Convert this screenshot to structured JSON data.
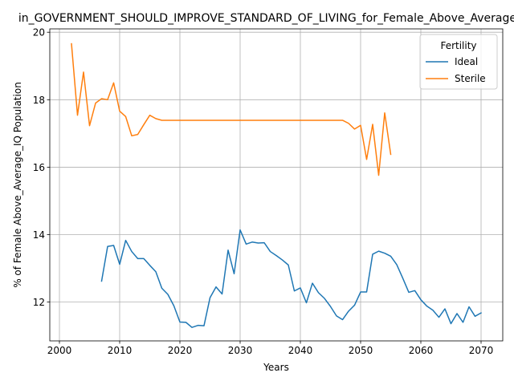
{
  "chart_data": {
    "type": "line",
    "title": "in_GOVERNMENT_SHOULD_IMPROVE_STANDARD_OF_LIVING_for_Female_Above_Average_IQ",
    "xlabel": "Years",
    "ylabel": "% of Female Above_Average_IQ Population",
    "xlim": [
      1998.4,
      2073.6
    ],
    "ylim": [
      10.85,
      20.1
    ],
    "xticks": [
      2000,
      2010,
      2020,
      2030,
      2040,
      2050,
      2060,
      2070
    ],
    "yticks": [
      12,
      14,
      16,
      18,
      20
    ],
    "grid": true,
    "legend": {
      "title": "Fertility",
      "position": "top-right"
    },
    "series": [
      {
        "name": "Ideal",
        "color": "#1f77b4",
        "x": [
          2007,
          2008,
          2009,
          2010,
          2011,
          2012,
          2013,
          2014,
          2015,
          2016,
          2017,
          2018,
          2019,
          2020,
          2021,
          2022,
          2023,
          2024,
          2025,
          2026,
          2027,
          2028,
          2029,
          2030,
          2031,
          2032,
          2033,
          2034,
          2035,
          2036,
          2037,
          2038,
          2039,
          2040,
          2041,
          2042,
          2043,
          2044,
          2045,
          2046,
          2047,
          2048,
          2049,
          2050,
          2051,
          2052,
          2053,
          2054,
          2055,
          2056,
          2057,
          2058,
          2059,
          2060,
          2061,
          2062,
          2063,
          2064,
          2065,
          2066,
          2067,
          2068,
          2069,
          2070
        ],
        "y": [
          12.62,
          13.65,
          13.68,
          13.12,
          13.83,
          13.5,
          13.29,
          13.29,
          13.09,
          12.9,
          12.41,
          12.23,
          11.89,
          11.41,
          11.4,
          11.25,
          11.31,
          11.3,
          12.13,
          12.45,
          12.24,
          13.54,
          12.84,
          14.14,
          13.72,
          13.78,
          13.75,
          13.76,
          13.5,
          13.38,
          13.25,
          13.1,
          12.33,
          12.42,
          11.98,
          12.56,
          12.28,
          12.11,
          11.87,
          11.59,
          11.48,
          11.73,
          11.91,
          12.3,
          12.3,
          13.42,
          13.51,
          13.45,
          13.36,
          13.11,
          12.71,
          12.29,
          12.34,
          12.07,
          11.88,
          11.76,
          11.55,
          11.8,
          11.36,
          11.66,
          11.4,
          11.86,
          11.58,
          11.68
        ]
      },
      {
        "name": "Sterile",
        "color": "#ff7f0e",
        "x": [
          2002,
          2003,
          2004,
          2005,
          2006,
          2007,
          2008,
          2009,
          2010,
          2011,
          2012,
          2013,
          2014,
          2015,
          2016,
          2017,
          2018,
          2019,
          2020,
          2021,
          2022,
          2023,
          2024,
          2025,
          2026,
          2027,
          2028,
          2029,
          2030,
          2031,
          2032,
          2033,
          2034,
          2035,
          2036,
          2037,
          2038,
          2039,
          2040,
          2041,
          2042,
          2043,
          2044,
          2045,
          2046,
          2047,
          2048,
          2049,
          2050,
          2051,
          2052,
          2053,
          2054,
          2055
        ],
        "y": [
          19.66,
          17.54,
          18.82,
          17.23,
          17.9,
          18.03,
          18.0,
          18.5,
          17.66,
          17.5,
          16.93,
          16.97,
          17.26,
          17.54,
          17.44,
          17.39,
          17.39,
          17.39,
          17.39,
          17.39,
          17.39,
          17.39,
          17.39,
          17.39,
          17.39,
          17.39,
          17.39,
          17.39,
          17.39,
          17.39,
          17.39,
          17.39,
          17.39,
          17.39,
          17.39,
          17.39,
          17.39,
          17.39,
          17.39,
          17.39,
          17.39,
          17.39,
          17.39,
          17.39,
          17.39,
          17.39,
          17.3,
          17.13,
          17.24,
          16.23,
          17.27,
          15.76,
          17.61,
          16.38
        ]
      }
    ]
  }
}
